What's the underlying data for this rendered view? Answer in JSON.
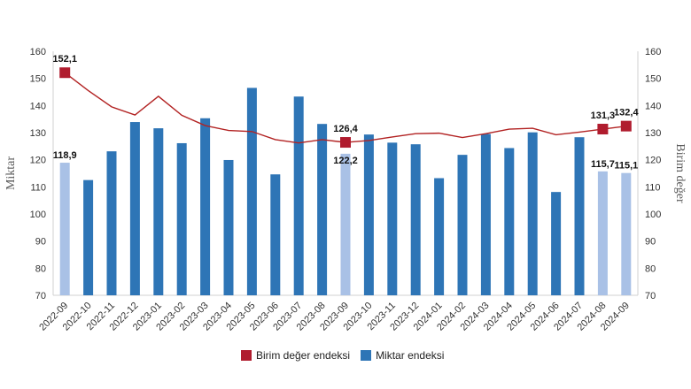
{
  "chart_data": {
    "type": "bar",
    "categories": [
      "2022-09",
      "2022-10",
      "2022-11",
      "2022-12",
      "2023-01",
      "2023-02",
      "2023-03",
      "2023-04",
      "2023-05",
      "2023-06",
      "2023-07",
      "2023-08",
      "2023-09",
      "2023-10",
      "2023-11",
      "2023-12",
      "2024-01",
      "2024-02",
      "2024-03",
      "2024-04",
      "2024-05",
      "2024-06",
      "2024-07",
      "2024-08",
      "2024-09"
    ],
    "series": [
      {
        "name": "Miktar endeksi",
        "type": "bar",
        "axis": "left",
        "values": [
          118.9,
          112.5,
          123.1,
          133.9,
          131.6,
          126.1,
          135.3,
          119.9,
          146.5,
          114.6,
          143.3,
          133.2,
          122.2,
          129.3,
          126.3,
          125.7,
          113.2,
          121.8,
          129.5,
          124.3,
          130.1,
          108.1,
          128.3,
          115.7,
          115.1
        ],
        "highlighted_categories": [
          "2022-09",
          "2023-09",
          "2024-08",
          "2024-09"
        ]
      },
      {
        "name": "Birim değer endeksi",
        "type": "line",
        "axis": "right",
        "values": [
          152.1,
          145.5,
          139.5,
          136.5,
          143.4,
          136.4,
          132.6,
          130.8,
          130.4,
          127.4,
          126.2,
          127.4,
          126.4,
          127.1,
          128.4,
          129.6,
          129.8,
          128.2,
          129.6,
          131.3,
          131.6,
          129.2,
          130.2,
          131.3,
          132.4
        ],
        "marked_categories": [
          "2022-09",
          "2023-09",
          "2024-08",
          "2024-09"
        ]
      }
    ],
    "data_labels": [
      {
        "category": "2022-09",
        "series": "Miktar endeksi",
        "text": "118,9"
      },
      {
        "category": "2022-09",
        "series": "Birim değer endeksi",
        "text": "152,1"
      },
      {
        "category": "2023-09",
        "series": "Birim değer endeksi",
        "text": "126,4"
      },
      {
        "category": "2023-09",
        "series": "Miktar endeksi",
        "text": "122,2"
      },
      {
        "category": "2024-08",
        "series": "Birim değer endeksi",
        "text": "131,3"
      },
      {
        "category": "2024-09",
        "series": "Birim değer endeksi",
        "text": "132,4"
      },
      {
        "category": "2024-08",
        "series": "Miktar endeksi",
        "text": "115,7"
      },
      {
        "category": "2024-09",
        "series": "Miktar endeksi",
        "text": "115,1"
      }
    ],
    "ylabel": "Miktar",
    "y2label": "Birim değer",
    "ylim": [
      70,
      160
    ],
    "y2lim": [
      70,
      160
    ],
    "yticks": [
      "70",
      "80",
      "90",
      "100",
      "110",
      "120",
      "130",
      "140",
      "150",
      "160"
    ],
    "grid": false,
    "legend_position": "bottom",
    "colors": {
      "bar": "#2e75b6",
      "bar_highlight": "#a9c1e6",
      "line": "#b22222",
      "marker": "#b01c2e"
    }
  },
  "legend": {
    "line_label": "Birim değer endeksi",
    "bar_label": "Miktar endeksi"
  }
}
